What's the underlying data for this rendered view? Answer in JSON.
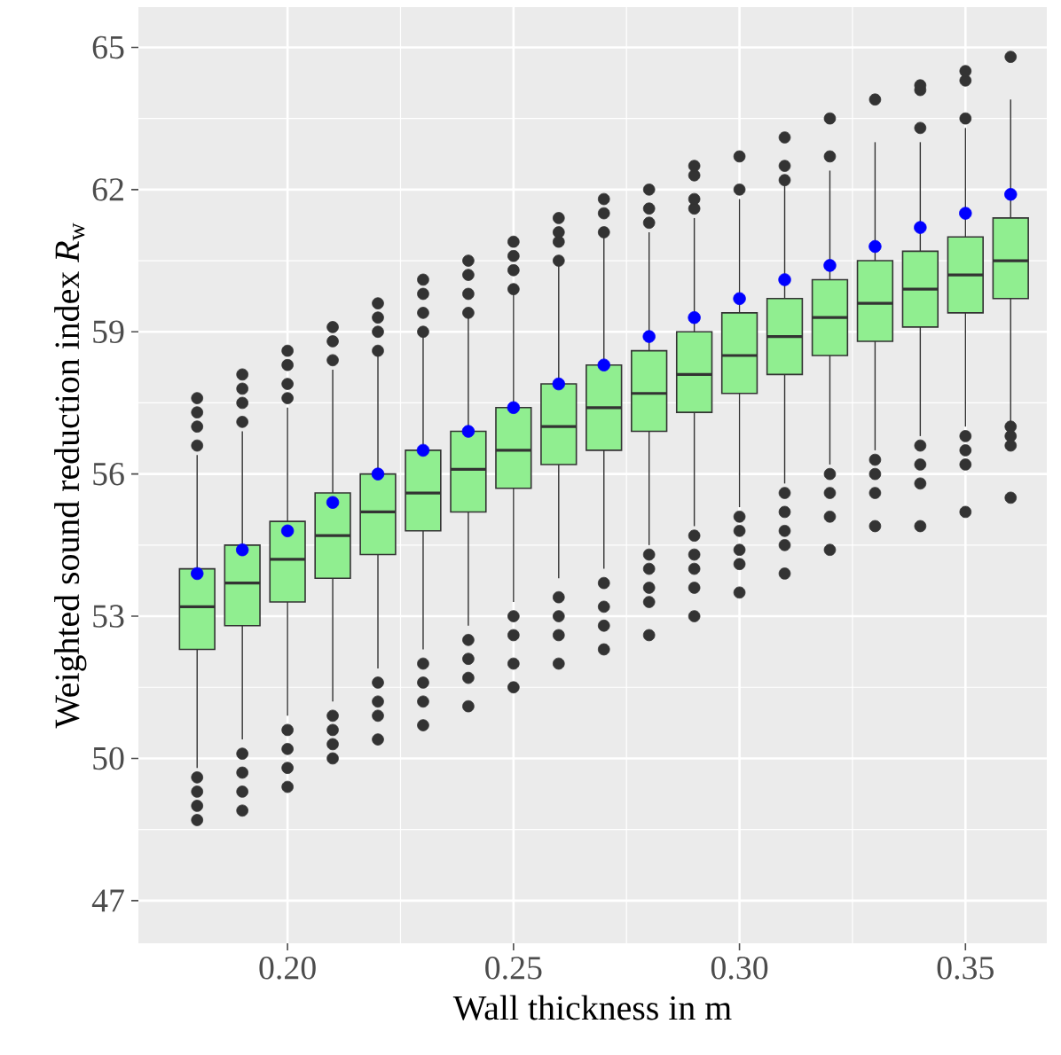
{
  "chart_data": {
    "type": "box",
    "xlabel": "Wall thickness in m",
    "ylabel": "Weighted sound reduction index *R*$_{w}$",
    "xlim": [
      0.167,
      0.368
    ],
    "ylim": [
      46.1,
      65.85
    ],
    "xticks": [
      {
        "value": 0.2,
        "label": "0.20"
      },
      {
        "value": 0.25,
        "label": "0.25"
      },
      {
        "value": 0.3,
        "label": "0.30"
      },
      {
        "value": 0.35,
        "label": "0.35"
      }
    ],
    "yticks": [
      47,
      50,
      53,
      56,
      59,
      62,
      65
    ],
    "grid": true,
    "series": [
      {
        "color": "#90ee90",
        "x": [
          0.18,
          0.19,
          0.2,
          0.21,
          0.22,
          0.23,
          0.24,
          0.25,
          0.26,
          0.27,
          0.28,
          0.29,
          0.3,
          0.31,
          0.32,
          0.33,
          0.34,
          0.35,
          0.36
        ],
        "boxes": [
          {
            "low": 49.8,
            "q1": 52.3,
            "median": 53.2,
            "q3": 54.0,
            "high": 56.4,
            "outliers": [
              56.6,
              57.0,
              57.3,
              57.6,
              49.6,
              49.3,
              49.0,
              48.7
            ]
          },
          {
            "low": 50.4,
            "q1": 52.8,
            "median": 53.7,
            "q3": 54.5,
            "high": 56.9,
            "outliers": [
              57.1,
              57.5,
              57.8,
              58.1,
              50.1,
              49.7,
              49.3,
              48.9
            ]
          },
          {
            "low": 50.9,
            "q1": 53.3,
            "median": 54.2,
            "q3": 55.0,
            "high": 57.4,
            "outliers": [
              57.6,
              57.9,
              58.3,
              58.6,
              50.6,
              50.2,
              49.8,
              49.4
            ]
          },
          {
            "low": 51.2,
            "q1": 53.8,
            "median": 54.7,
            "q3": 55.6,
            "high": 58.2,
            "outliers": [
              58.4,
              58.8,
              59.1,
              50.9,
              50.6,
              50.3,
              50.0
            ]
          },
          {
            "low": 51.9,
            "q1": 54.3,
            "median": 55.2,
            "q3": 56.0,
            "high": 58.5,
            "outliers": [
              58.6,
              59.0,
              59.3,
              59.6,
              51.6,
              51.2,
              50.9,
              50.4
            ]
          },
          {
            "low": 52.3,
            "q1": 54.8,
            "median": 55.6,
            "q3": 56.5,
            "high": 58.9,
            "outliers": [
              59.0,
              59.4,
              59.8,
              60.1,
              52.0,
              51.6,
              51.2,
              50.7
            ]
          },
          {
            "low": 52.8,
            "q1": 55.2,
            "median": 56.1,
            "q3": 56.9,
            "high": 59.3,
            "outliers": [
              59.4,
              59.8,
              60.2,
              60.5,
              52.5,
              52.1,
              51.7,
              51.1
            ]
          },
          {
            "low": 53.3,
            "q1": 55.7,
            "median": 56.5,
            "q3": 57.4,
            "high": 59.8,
            "outliers": [
              59.9,
              60.3,
              60.6,
              60.9,
              53.0,
              52.6,
              52.0,
              51.5
            ]
          },
          {
            "low": 53.8,
            "q1": 56.2,
            "median": 57.0,
            "q3": 57.9,
            "high": 60.4,
            "outliers": [
              60.5,
              60.9,
              61.1,
              61.4,
              53.4,
              53.0,
              52.6,
              52.0
            ]
          },
          {
            "low": 54.0,
            "q1": 56.5,
            "median": 57.4,
            "q3": 58.3,
            "high": 61.0,
            "outliers": [
              61.1,
              61.5,
              61.8,
              53.7,
              53.2,
              52.8,
              52.3
            ]
          },
          {
            "low": 54.5,
            "q1": 56.9,
            "median": 57.7,
            "q3": 58.6,
            "high": 61.1,
            "outliers": [
              61.3,
              61.6,
              62.0,
              54.3,
              54.0,
              53.6,
              53.3,
              52.6
            ]
          },
          {
            "low": 54.9,
            "q1": 57.3,
            "median": 58.1,
            "q3": 59.0,
            "high": 61.4,
            "outliers": [
              61.6,
              61.8,
              62.3,
              62.5,
              54.7,
              54.3,
              54.0,
              53.6,
              53.0
            ]
          },
          {
            "low": 55.3,
            "q1": 57.7,
            "median": 58.5,
            "q3": 59.4,
            "high": 61.8,
            "outliers": [
              62.0,
              62.7,
              55.1,
              54.8,
              54.4,
              54.1,
              53.5
            ]
          },
          {
            "low": 55.8,
            "q1": 58.1,
            "median": 58.9,
            "q3": 59.7,
            "high": 62.1,
            "outliers": [
              62.2,
              62.5,
              63.1,
              55.6,
              55.2,
              54.8,
              54.5,
              53.9
            ]
          },
          {
            "low": 56.2,
            "q1": 58.5,
            "median": 59.3,
            "q3": 60.1,
            "high": 62.4,
            "outliers": [
              62.7,
              63.5,
              56.0,
              55.6,
              55.1,
              54.4
            ]
          },
          {
            "low": 56.5,
            "q1": 58.8,
            "median": 59.6,
            "q3": 60.5,
            "high": 63.0,
            "outliers": [
              63.9,
              56.3,
              56.0,
              55.6,
              54.9
            ]
          },
          {
            "low": 56.8,
            "q1": 59.1,
            "median": 59.9,
            "q3": 60.7,
            "high": 63.0,
            "outliers": [
              63.3,
              64.1,
              64.2,
              56.6,
              56.2,
              55.8,
              54.9
            ]
          },
          {
            "low": 57.0,
            "q1": 59.4,
            "median": 60.2,
            "q3": 61.0,
            "high": 63.3,
            "outliers": [
              63.5,
              64.3,
              64.5,
              56.8,
              56.5,
              56.2,
              55.2
            ]
          },
          {
            "low": 57.1,
            "q1": 59.7,
            "median": 60.5,
            "q3": 61.4,
            "high": 63.9,
            "outliers": [
              64.8,
              57.0,
              56.8,
              56.6,
              55.5
            ]
          }
        ]
      },
      {
        "type": "scatter",
        "color": "#0000ff",
        "marker": "circle",
        "x": [
          0.18,
          0.19,
          0.2,
          0.21,
          0.22,
          0.23,
          0.24,
          0.25,
          0.26,
          0.27,
          0.28,
          0.29,
          0.3,
          0.31,
          0.32,
          0.33,
          0.34,
          0.35,
          0.36
        ],
        "values": [
          53.9,
          54.4,
          54.8,
          55.4,
          56.0,
          56.5,
          56.9,
          57.4,
          57.9,
          58.3,
          58.9,
          59.3,
          59.7,
          60.1,
          60.4,
          60.8,
          61.2,
          61.5,
          61.9
        ]
      }
    ]
  }
}
